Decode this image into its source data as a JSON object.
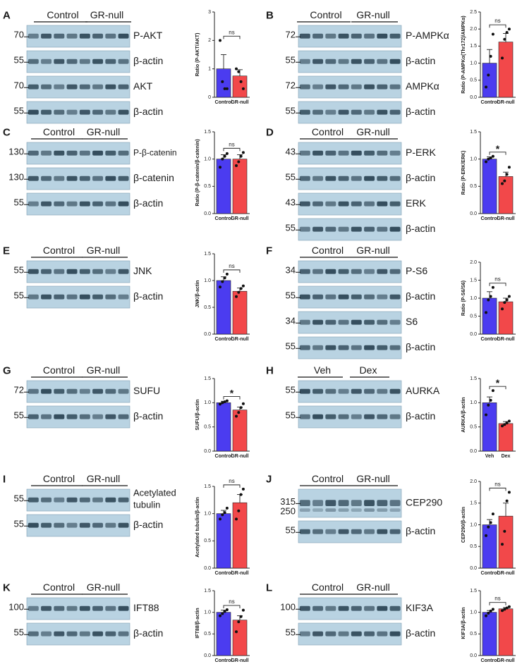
{
  "figure": {
    "panels": [
      {
        "id": "A",
        "groups": [
          "Control",
          "GR-null"
        ],
        "blots": [
          {
            "label": "P-AKT",
            "mw": "70"
          },
          {
            "label": "β-actin",
            "mw": "55"
          },
          {
            "label": "AKT",
            "mw": "70"
          },
          {
            "label": "β-actin",
            "mw": "55"
          }
        ]
      },
      {
        "id": "B",
        "groups": [
          "Control",
          "GR-null"
        ],
        "blots": [
          {
            "label": "P-AMPKα",
            "mw": "72"
          },
          {
            "label": "β-actin",
            "mw": "55"
          },
          {
            "label": "AMPKα",
            "mw": "72"
          },
          {
            "label": "β-actin",
            "mw": "55"
          }
        ]
      },
      {
        "id": "C",
        "groups": [
          "Control",
          "GR-null"
        ],
        "blots": [
          {
            "label": "P-β-catenin",
            "mw": "130"
          },
          {
            "label": "β-catenin",
            "mw": "130"
          },
          {
            "label": "β-actin",
            "mw": "55"
          }
        ]
      },
      {
        "id": "D",
        "groups": [
          "Control",
          "GR-null"
        ],
        "blots": [
          {
            "label": "P-ERK",
            "mw": "43"
          },
          {
            "label": "β-actin",
            "mw": "55"
          },
          {
            "label": "ERK",
            "mw": "43"
          },
          {
            "label": "β-actin",
            "mw": "55"
          }
        ]
      },
      {
        "id": "E",
        "groups": [
          "Control",
          "GR-null"
        ],
        "blots": [
          {
            "label": "JNK",
            "mw": "55"
          },
          {
            "label": "β-actin",
            "mw": "55"
          }
        ]
      },
      {
        "id": "F",
        "groups": [
          "Control",
          "GR-null"
        ],
        "blots": [
          {
            "label": "P-S6",
            "mw": "34"
          },
          {
            "label": "β-actin",
            "mw": "55"
          },
          {
            "label": "S6",
            "mw": "34"
          },
          {
            "label": "β-actin",
            "mw": "55"
          }
        ]
      },
      {
        "id": "G",
        "groups": [
          "Control",
          "GR-null"
        ],
        "blots": [
          {
            "label": "SUFU",
            "mw": "72"
          },
          {
            "label": "β-actin",
            "mw": "55"
          }
        ]
      },
      {
        "id": "H",
        "groups": [
          "Veh",
          "Dex"
        ],
        "blots": [
          {
            "label": "AURKA",
            "mw": "55"
          },
          {
            "label": "β-actin",
            "mw": "55"
          }
        ]
      },
      {
        "id": "I",
        "groups": [
          "Control",
          "GR-null"
        ],
        "blots": [
          {
            "label": "Acetylated tubulin",
            "mw": "55"
          },
          {
            "label": "β-actin",
            "mw": "55"
          }
        ]
      },
      {
        "id": "J",
        "groups": [
          "Control",
          "GR-null"
        ],
        "blots": [
          {
            "label": "CEP290",
            "mw": "315",
            "mw2": "250"
          },
          {
            "label": "β-actin",
            "mw": "55"
          }
        ]
      },
      {
        "id": "K",
        "groups": [
          "Control",
          "GR-null"
        ],
        "blots": [
          {
            "label": "IFT88",
            "mw": "100"
          },
          {
            "label": "β-actin",
            "mw": "55"
          }
        ]
      },
      {
        "id": "L",
        "groups": [
          "Control",
          "GR-null"
        ],
        "blots": [
          {
            "label": "KIF3A",
            "mw": "100"
          },
          {
            "label": "β-actin",
            "mw": "55"
          }
        ]
      }
    ]
  },
  "chart_data": [
    {
      "panel": "A",
      "type": "bar",
      "categories": [
        "Control",
        "GR-null"
      ],
      "values": [
        1.0,
        0.75
      ],
      "errors": [
        0.5,
        0.22
      ],
      "points": [
        [
          2.0,
          0.55,
          0.3,
          0.3
        ],
        [
          1.0,
          0.9,
          0.55,
          0.3
        ]
      ],
      "ylabel": "Ratio (P-AKT/AKT)",
      "ylim": [
        0,
        3
      ],
      "yticks": [
        "0",
        "1",
        "2",
        "3"
      ],
      "significance": "ns"
    },
    {
      "panel": "B",
      "type": "bar",
      "categories": [
        "Control",
        "GR-null"
      ],
      "values": [
        1.0,
        1.62
      ],
      "errors": [
        0.4,
        0.25
      ],
      "points": [
        [
          0.3,
          0.65,
          1.2,
          1.85
        ],
        [
          1.15,
          1.7,
          1.9,
          2.0
        ]
      ],
      "ylabel": "Ratio (P-AMPKα(Thr172)/AMPKα)",
      "ylim": [
        0,
        2.5
      ],
      "yticks": [
        "0.0",
        "0.5",
        "1.0",
        "1.5",
        "2.0",
        "2.5"
      ],
      "significance": "ns"
    },
    {
      "panel": "C",
      "type": "bar",
      "categories": [
        "Control",
        "GR-null"
      ],
      "values": [
        1.0,
        1.0
      ],
      "errors": [
        0.08,
        0.08
      ],
      "points": [
        [
          0.85,
          1.0,
          1.05,
          1.1
        ],
        [
          0.88,
          0.95,
          1.05,
          1.12
        ]
      ],
      "ylabel": "Ratio (P-β-catenin/β-catenin)",
      "ylim": [
        0,
        1.5
      ],
      "yticks": [
        "0.0",
        "0.5",
        "1.0",
        "1.5"
      ],
      "significance": "ns"
    },
    {
      "panel": "D",
      "type": "bar",
      "categories": [
        "Control",
        "GR-null"
      ],
      "values": [
        1.0,
        0.68
      ],
      "errors": [
        0.04,
        0.08
      ],
      "points": [
        [
          0.95,
          1.0,
          1.02,
          1.05
        ],
        [
          0.55,
          0.6,
          0.72,
          0.85
        ]
      ],
      "ylabel": "Ratio (P-ERK/ERK)",
      "ylim": [
        0,
        1.5
      ],
      "yticks": [
        "0.0",
        "0.5",
        "1.0",
        "1.5"
      ],
      "significance": "*"
    },
    {
      "panel": "E",
      "type": "bar",
      "categories": [
        "Control",
        "GR-null"
      ],
      "values": [
        1.0,
        0.8
      ],
      "errors": [
        0.07,
        0.06
      ],
      "points": [
        [
          0.88,
          0.98,
          1.05,
          1.12
        ],
        [
          0.7,
          0.78,
          0.85,
          0.9
        ]
      ],
      "ylabel": "JNK/β-actin",
      "ylim": [
        0,
        1.5
      ],
      "yticks": [
        "0.0",
        "0.5",
        "1.0",
        "1.5"
      ],
      "significance": "ns"
    },
    {
      "panel": "F",
      "type": "bar",
      "categories": [
        "Control",
        "GR-null"
      ],
      "values": [
        1.0,
        0.9
      ],
      "errors": [
        0.18,
        0.1
      ],
      "points": [
        [
          0.6,
          0.95,
          1.05,
          1.3
        ],
        [
          0.7,
          0.88,
          0.95,
          1.05
        ]
      ],
      "ylabel": "Ratio (P-S6/S6)",
      "ylim": [
        0,
        2.0
      ],
      "yticks": [
        "0.0",
        "0.5",
        "1.0",
        "1.5",
        "2.0"
      ],
      "significance": "ns"
    },
    {
      "panel": "G",
      "type": "bar",
      "categories": [
        "Control",
        "GR-null"
      ],
      "values": [
        1.0,
        0.85
      ],
      "errors": [
        0.03,
        0.06
      ],
      "points": [
        [
          0.97,
          1.0,
          1.02,
          1.04
        ],
        [
          0.72,
          0.8,
          0.9,
          0.98
        ]
      ],
      "ylabel": "SUFU/β-actin",
      "ylim": [
        0,
        1.5
      ],
      "yticks": [
        "0.0",
        "0.5",
        "1.0",
        "1.5"
      ],
      "significance": "*"
    },
    {
      "panel": "H",
      "type": "bar",
      "categories": [
        "Veh",
        "Dex"
      ],
      "values": [
        1.0,
        0.57
      ],
      "errors": [
        0.12,
        0.04
      ],
      "points": [
        [
          0.75,
          0.95,
          1.05,
          1.25
        ],
        [
          0.52,
          0.55,
          0.58,
          0.62
        ]
      ],
      "ylabel": "AURKA/β-actin",
      "ylim": [
        0,
        1.5
      ],
      "yticks": [
        "0.0",
        "0.5",
        "1.0",
        "1.5"
      ],
      "significance": "*"
    },
    {
      "panel": "I",
      "type": "bar",
      "categories": [
        "Control",
        "GR-null"
      ],
      "values": [
        1.0,
        1.2
      ],
      "errors": [
        0.06,
        0.15
      ],
      "points": [
        [
          0.9,
          0.98,
          1.02,
          1.1
        ],
        [
          0.9,
          1.05,
          1.35,
          1.45
        ]
      ],
      "ylabel": "Acetylated tubulin/β-actin",
      "ylim": [
        0,
        1.5
      ],
      "yticks": [
        "0.0",
        "0.5",
        "1.0",
        "1.5"
      ],
      "significance": "ns"
    },
    {
      "panel": "J",
      "type": "bar",
      "categories": [
        "Control",
        "GR-null"
      ],
      "values": [
        1.0,
        1.2
      ],
      "errors": [
        0.12,
        0.3
      ],
      "points": [
        [
          0.75,
          0.95,
          1.05,
          1.25
        ],
        [
          0.55,
          0.85,
          1.55,
          1.75
        ]
      ],
      "ylabel": "CEP290/β-actin",
      "ylim": [
        0,
        2.0
      ],
      "yticks": [
        "0.0",
        "0.5",
        "1.0",
        "1.5",
        "2.0"
      ],
      "significance": "ns"
    },
    {
      "panel": "K",
      "type": "bar",
      "categories": [
        "Control",
        "GR-null"
      ],
      "values": [
        1.0,
        0.82
      ],
      "errors": [
        0.05,
        0.1
      ],
      "points": [
        [
          0.92,
          0.97,
          1.02,
          1.06
        ],
        [
          0.55,
          0.78,
          0.9,
          1.05
        ]
      ],
      "ylabel": "IFT88/β-actin",
      "ylim": [
        0,
        1.5
      ],
      "yticks": [
        "0.0",
        "0.5",
        "1.0",
        "1.5"
      ],
      "significance": "ns"
    },
    {
      "panel": "L",
      "type": "bar",
      "categories": [
        "Control",
        "GR-null"
      ],
      "values": [
        1.0,
        1.08
      ],
      "errors": [
        0.04,
        0.03
      ],
      "points": [
        [
          0.92,
          0.98,
          1.03,
          1.07
        ],
        [
          1.04,
          1.07,
          1.1,
          1.13
        ]
      ],
      "ylabel": "KIF3A/β-actin",
      "ylim": [
        0,
        1.5
      ],
      "yticks": [
        "0.0",
        "0.5",
        "1.0",
        "1.5"
      ],
      "significance": "ns"
    }
  ],
  "colors": {
    "control_bar": "#4b3cf0",
    "treated_bar": "#f2484a",
    "blot_background": "#b9d3e2",
    "band": "#203848"
  }
}
